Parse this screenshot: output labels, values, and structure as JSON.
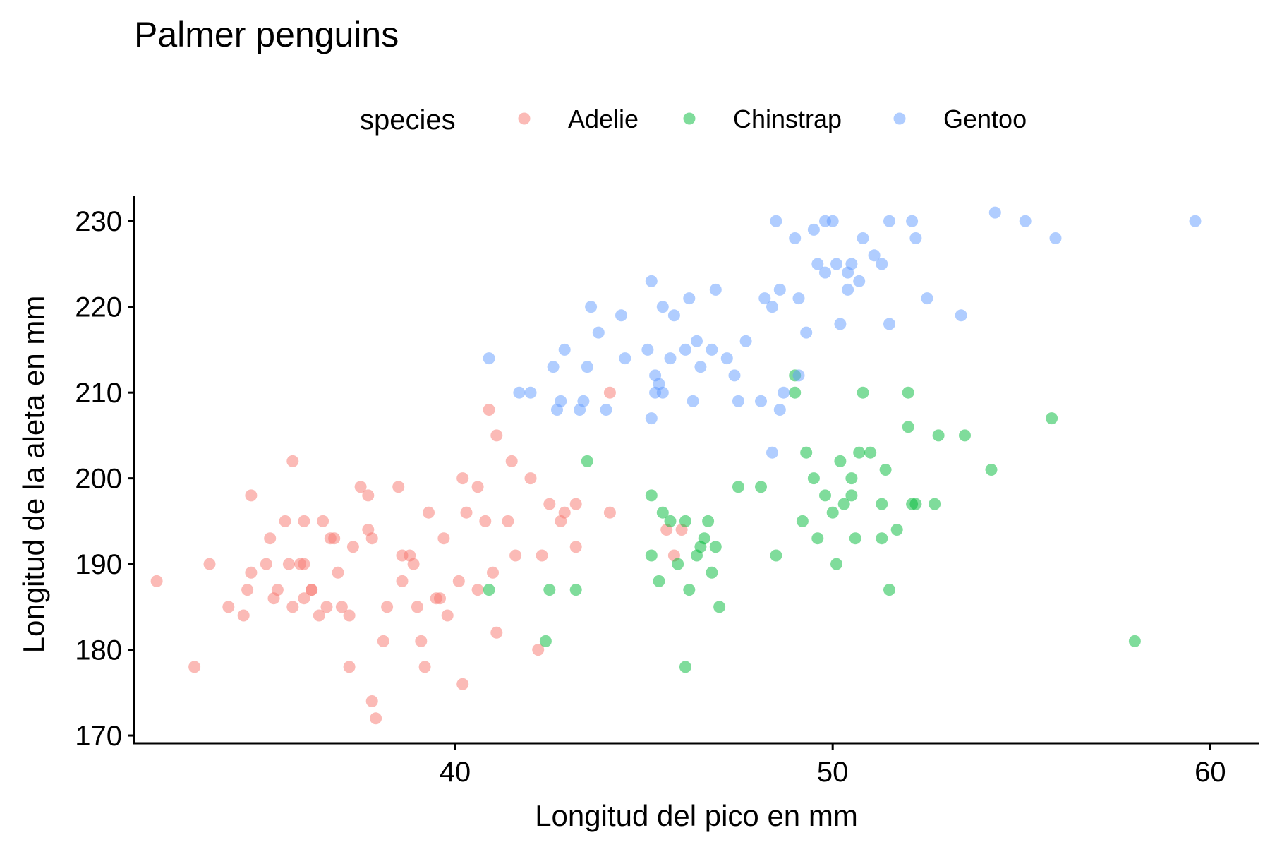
{
  "chart_data": {
    "type": "scatter",
    "title": "Palmer penguins",
    "xlabel": "Longitud del pico en mm",
    "ylabel": "Longitud de la aleta en mm",
    "xlim": [
      31.5,
      61.3
    ],
    "ylim": [
      169.1,
      232.9
    ],
    "xticks": [
      40,
      50,
      60
    ],
    "yticks": [
      170,
      180,
      190,
      200,
      210,
      220,
      230
    ],
    "grid": false,
    "legend": {
      "title": "species",
      "position": "top"
    },
    "series": [
      {
        "name": "Adelie",
        "color": "#F8766D",
        "points": [
          [
            32.1,
            188
          ],
          [
            33.1,
            178
          ],
          [
            33.5,
            190
          ],
          [
            34.0,
            185
          ],
          [
            34.4,
            184
          ],
          [
            34.5,
            187
          ],
          [
            34.6,
            198
          ],
          [
            34.6,
            189
          ],
          [
            35.0,
            190
          ],
          [
            35.1,
            193
          ],
          [
            35.2,
            186
          ],
          [
            35.3,
            187
          ],
          [
            35.5,
            195
          ],
          [
            35.6,
            190
          ],
          [
            35.7,
            185
          ],
          [
            35.7,
            202
          ],
          [
            35.9,
            190
          ],
          [
            36.0,
            190
          ],
          [
            36.0,
            186
          ],
          [
            36.0,
            195
          ],
          [
            36.2,
            187
          ],
          [
            36.2,
            187
          ],
          [
            36.4,
            184
          ],
          [
            36.5,
            195
          ],
          [
            36.6,
            185
          ],
          [
            36.7,
            193
          ],
          [
            36.8,
            193
          ],
          [
            36.9,
            189
          ],
          [
            37.0,
            185
          ],
          [
            37.2,
            184
          ],
          [
            37.2,
            178
          ],
          [
            37.3,
            192
          ],
          [
            37.5,
            199
          ],
          [
            37.7,
            194
          ],
          [
            37.7,
            198
          ],
          [
            37.8,
            193
          ],
          [
            37.8,
            174
          ],
          [
            37.9,
            172
          ],
          [
            38.1,
            181
          ],
          [
            38.2,
            185
          ],
          [
            38.5,
            199
          ],
          [
            38.6,
            188
          ],
          [
            38.6,
            191
          ],
          [
            38.8,
            191
          ],
          [
            38.9,
            190
          ],
          [
            39.0,
            185
          ],
          [
            39.1,
            181
          ],
          [
            39.2,
            178
          ],
          [
            39.3,
            196
          ],
          [
            39.5,
            186
          ],
          [
            39.6,
            186
          ],
          [
            39.7,
            193
          ],
          [
            39.8,
            184
          ],
          [
            40.1,
            188
          ],
          [
            40.2,
            200
          ],
          [
            40.2,
            176
          ],
          [
            40.3,
            196
          ],
          [
            40.6,
            187
          ],
          [
            40.6,
            199
          ],
          [
            40.8,
            195
          ],
          [
            40.9,
            208
          ],
          [
            41.0,
            189
          ],
          [
            41.1,
            182
          ],
          [
            41.1,
            205
          ],
          [
            41.4,
            195
          ],
          [
            41.5,
            202
          ],
          [
            41.6,
            191
          ],
          [
            42.0,
            200
          ],
          [
            42.2,
            180
          ],
          [
            42.3,
            191
          ],
          [
            42.5,
            197
          ],
          [
            42.8,
            195
          ],
          [
            42.9,
            196
          ],
          [
            43.2,
            197
          ],
          [
            43.2,
            192
          ],
          [
            44.1,
            196
          ],
          [
            44.1,
            210
          ],
          [
            45.6,
            194
          ],
          [
            45.8,
            191
          ],
          [
            46.0,
            194
          ]
        ]
      },
      {
        "name": "Chinstrap",
        "color": "#00BA38",
        "points": [
          [
            40.9,
            187
          ],
          [
            42.4,
            181
          ],
          [
            42.5,
            187
          ],
          [
            43.2,
            187
          ],
          [
            43.5,
            202
          ],
          [
            45.2,
            191
          ],
          [
            45.2,
            198
          ],
          [
            45.4,
            188
          ],
          [
            45.5,
            196
          ],
          [
            45.7,
            195
          ],
          [
            45.9,
            190
          ],
          [
            46.1,
            195
          ],
          [
            46.2,
            187
          ],
          [
            46.4,
            191
          ],
          [
            46.5,
            192
          ],
          [
            46.6,
            193
          ],
          [
            46.7,
            195
          ],
          [
            46.8,
            189
          ],
          [
            46.9,
            192
          ],
          [
            47.0,
            185
          ],
          [
            46.1,
            178
          ],
          [
            47.5,
            199
          ],
          [
            48.1,
            199
          ],
          [
            48.5,
            191
          ],
          [
            49.0,
            212
          ],
          [
            49.0,
            210
          ],
          [
            49.2,
            195
          ],
          [
            49.3,
            203
          ],
          [
            49.5,
            200
          ],
          [
            49.6,
            193
          ],
          [
            49.8,
            198
          ],
          [
            50.0,
            196
          ],
          [
            50.1,
            190
          ],
          [
            50.2,
            202
          ],
          [
            50.3,
            197
          ],
          [
            50.5,
            198
          ],
          [
            50.5,
            200
          ],
          [
            50.6,
            193
          ],
          [
            50.7,
            203
          ],
          [
            50.8,
            210
          ],
          [
            51.0,
            203
          ],
          [
            51.3,
            193
          ],
          [
            51.3,
            197
          ],
          [
            51.4,
            201
          ],
          [
            51.5,
            187
          ],
          [
            51.7,
            194
          ],
          [
            52.0,
            206
          ],
          [
            52.0,
            210
          ],
          [
            52.1,
            197
          ],
          [
            52.2,
            197
          ],
          [
            52.7,
            197
          ],
          [
            52.8,
            205
          ],
          [
            53.5,
            205
          ],
          [
            54.2,
            201
          ],
          [
            55.8,
            207
          ],
          [
            58.0,
            181
          ]
        ]
      },
      {
        "name": "Gentoo",
        "color": "#619CFF",
        "points": [
          [
            40.9,
            214
          ],
          [
            41.7,
            210
          ],
          [
            42.0,
            210
          ],
          [
            42.6,
            213
          ],
          [
            42.7,
            208
          ],
          [
            42.8,
            209
          ],
          [
            42.9,
            215
          ],
          [
            43.3,
            208
          ],
          [
            43.4,
            209
          ],
          [
            43.5,
            213
          ],
          [
            43.6,
            220
          ],
          [
            43.8,
            217
          ],
          [
            44.0,
            208
          ],
          [
            44.4,
            219
          ],
          [
            44.5,
            214
          ],
          [
            45.1,
            215
          ],
          [
            45.2,
            223
          ],
          [
            45.3,
            210
          ],
          [
            45.5,
            210
          ],
          [
            45.5,
            220
          ],
          [
            45.7,
            214
          ],
          [
            45.8,
            219
          ],
          [
            46.1,
            215
          ],
          [
            46.2,
            221
          ],
          [
            46.3,
            209
          ],
          [
            46.4,
            216
          ],
          [
            46.5,
            213
          ],
          [
            46.8,
            215
          ],
          [
            46.9,
            222
          ],
          [
            47.2,
            214
          ],
          [
            47.5,
            209
          ],
          [
            47.7,
            216
          ],
          [
            48.1,
            209
          ],
          [
            48.2,
            221
          ],
          [
            48.4,
            220
          ],
          [
            48.5,
            230
          ],
          [
            48.6,
            222
          ],
          [
            48.7,
            210
          ],
          [
            49.0,
            228
          ],
          [
            49.1,
            221
          ],
          [
            49.3,
            217
          ],
          [
            49.5,
            229
          ],
          [
            49.6,
            225
          ],
          [
            49.8,
            230
          ],
          [
            50.0,
            230
          ],
          [
            50.1,
            225
          ],
          [
            50.2,
            218
          ],
          [
            50.4,
            222
          ],
          [
            50.5,
            225
          ],
          [
            50.7,
            223
          ],
          [
            50.8,
            228
          ],
          [
            51.1,
            226
          ],
          [
            51.3,
            225
          ],
          [
            51.5,
            230
          ],
          [
            52.1,
            230
          ],
          [
            52.2,
            228
          ],
          [
            52.5,
            221
          ],
          [
            53.4,
            219
          ],
          [
            54.3,
            231
          ],
          [
            55.1,
            230
          ],
          [
            55.9,
            228
          ],
          [
            59.6,
            230
          ],
          [
            45.2,
            207
          ],
          [
            45.3,
            212
          ],
          [
            45.4,
            211
          ],
          [
            47.4,
            212
          ],
          [
            48.4,
            203
          ],
          [
            48.6,
            208
          ],
          [
            49.1,
            212
          ],
          [
            49.8,
            224
          ],
          [
            50.4,
            224
          ],
          [
            51.5,
            218
          ]
        ]
      }
    ]
  }
}
